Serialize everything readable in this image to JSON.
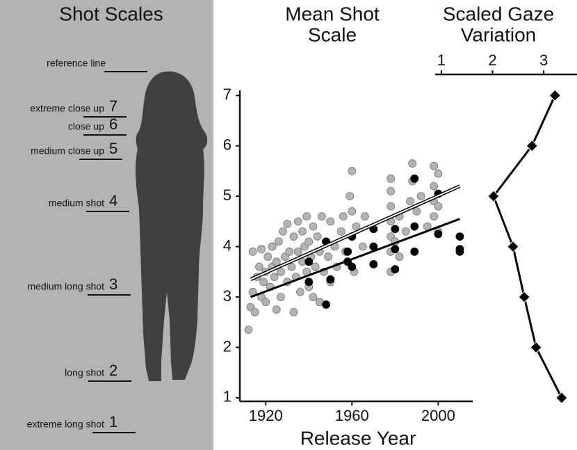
{
  "panel": {
    "title": "Shot Scales",
    "items": [
      {
        "label": "reference line"
      },
      {
        "label": "extreme close up",
        "number": 7
      },
      {
        "label": "close up",
        "number": 6
      },
      {
        "label": "medium close up",
        "number": 5
      },
      {
        "label": "medium shot",
        "number": 4
      },
      {
        "label": "medium long shot",
        "number": 3
      },
      {
        "label": "long shot",
        "number": 2
      },
      {
        "label": "extreme long shot",
        "number": 1
      }
    ]
  },
  "chart_data": [
    {
      "type": "scatter",
      "title": [
        "Mean Shot",
        "Scale"
      ],
      "x_label": "Release Year",
      "xlim": [
        1908,
        2016
      ],
      "xticks": [
        1920,
        1960,
        2000
      ],
      "ylim": [
        0.93,
        7.1
      ],
      "yticks": [
        1,
        2,
        3,
        4,
        5,
        6,
        7
      ],
      "series": [
        {
          "mode": "markers",
          "color": "#b3b3b3",
          "x": [
            1912,
            1913,
            1914,
            1914,
            1915,
            1916,
            1917,
            1918,
            1918,
            1919,
            1920,
            1920,
            1921,
            1922,
            1923,
            1923,
            1924,
            1925,
            1925,
            1926,
            1927,
            1927,
            1928,
            1929,
            1930,
            1930,
            1931,
            1932,
            1933,
            1933,
            1934,
            1935,
            1935,
            1936,
            1937,
            1937,
            1938,
            1939,
            1939,
            1940,
            1940,
            1941,
            1942,
            1942,
            1943,
            1944,
            1945,
            1945,
            1946,
            1947,
            1948,
            1949,
            1950,
            1950,
            1952,
            1953,
            1955,
            1956,
            1957,
            1958,
            1959,
            1960,
            1960,
            1960,
            1961,
            1962,
            1965,
            1966,
            1978,
            1978,
            1978,
            1978,
            1978,
            1978,
            1978,
            1980,
            1982,
            1982,
            1985,
            1987,
            1988,
            1988,
            1990,
            1992,
            1995,
            1998,
            1998,
            1998,
            1998,
            2000,
            2000,
            2000
          ],
          "values": [
            2.35,
            2.8,
            3.1,
            3.9,
            2.7,
            3.4,
            3.6,
            3.0,
            3.95,
            3.3,
            3.5,
            2.9,
            3.8,
            3.2,
            4.0,
            3.6,
            3.4,
            2.75,
            3.7,
            4.1,
            3.5,
            3.0,
            4.3,
            3.8,
            3.3,
            4.45,
            3.9,
            3.6,
            2.7,
            4.2,
            3.4,
            3.9,
            4.5,
            3.1,
            3.7,
            4.3,
            4.0,
            3.5,
            4.6,
            4.1,
            3.2,
            3.8,
            4.4,
            3.0,
            3.6,
            4.2,
            3.9,
            2.9,
            4.6,
            3.5,
            4.1,
            3.8,
            4.5,
            3.3,
            4.0,
            3.6,
            4.3,
            4.6,
            3.9,
            3.7,
            5.0,
            4.2,
            4.7,
            5.5,
            3.5,
            4.4,
            4.0,
            4.6,
            3.5,
            3.9,
            4.2,
            4.5,
            4.8,
            5.1,
            5.35,
            4.1,
            4.6,
            3.8,
            4.3,
            4.9,
            5.3,
            5.65,
            4.7,
            5.0,
            4.4,
            4.6,
            4.9,
            5.2,
            5.6,
            4.8,
            5.45,
            4.3
          ]
        },
        {
          "mode": "markers",
          "color": "#000000",
          "x": [
            1940,
            1940,
            1948,
            1948,
            1950,
            1958,
            1958,
            1960,
            1960,
            1970,
            1970,
            1970,
            1980,
            1980,
            1980,
            1989,
            1989,
            1989,
            2000,
            2000,
            2010,
            2010,
            2010
          ],
          "values": [
            3.7,
            3.3,
            2.85,
            4.1,
            3.35,
            3.7,
            3.9,
            3.6,
            4.2,
            4.0,
            4.35,
            3.65,
            4.35,
            3.55,
            3.95,
            4.4,
            3.9,
            5.35,
            4.25,
            5.05,
            3.9,
            4.2,
            3.95
          ]
        },
        {
          "mode": "line",
          "color": "#b3b3b3",
          "x": [
            1913,
            2010
          ],
          "values": [
            3.35,
            5.2
          ]
        },
        {
          "mode": "line",
          "color": "#000000",
          "x": [
            1913,
            2010
          ],
          "values": [
            3.0,
            4.55
          ]
        }
      ]
    },
    {
      "type": "line",
      "title": [
        "Scaled Gaze",
        "Variation"
      ],
      "xlim": [
        0.88,
        3.65
      ],
      "xticks": [
        1,
        2,
        3
      ],
      "ylim": [
        0.93,
        7.1
      ],
      "series": [
        {
          "color": "#000000",
          "x": [
            3.22,
            2.77,
            2.02,
            2.4,
            2.62,
            2.85,
            3.35
          ],
          "values": [
            7,
            6,
            5,
            4,
            3,
            2,
            1
          ]
        }
      ]
    }
  ]
}
